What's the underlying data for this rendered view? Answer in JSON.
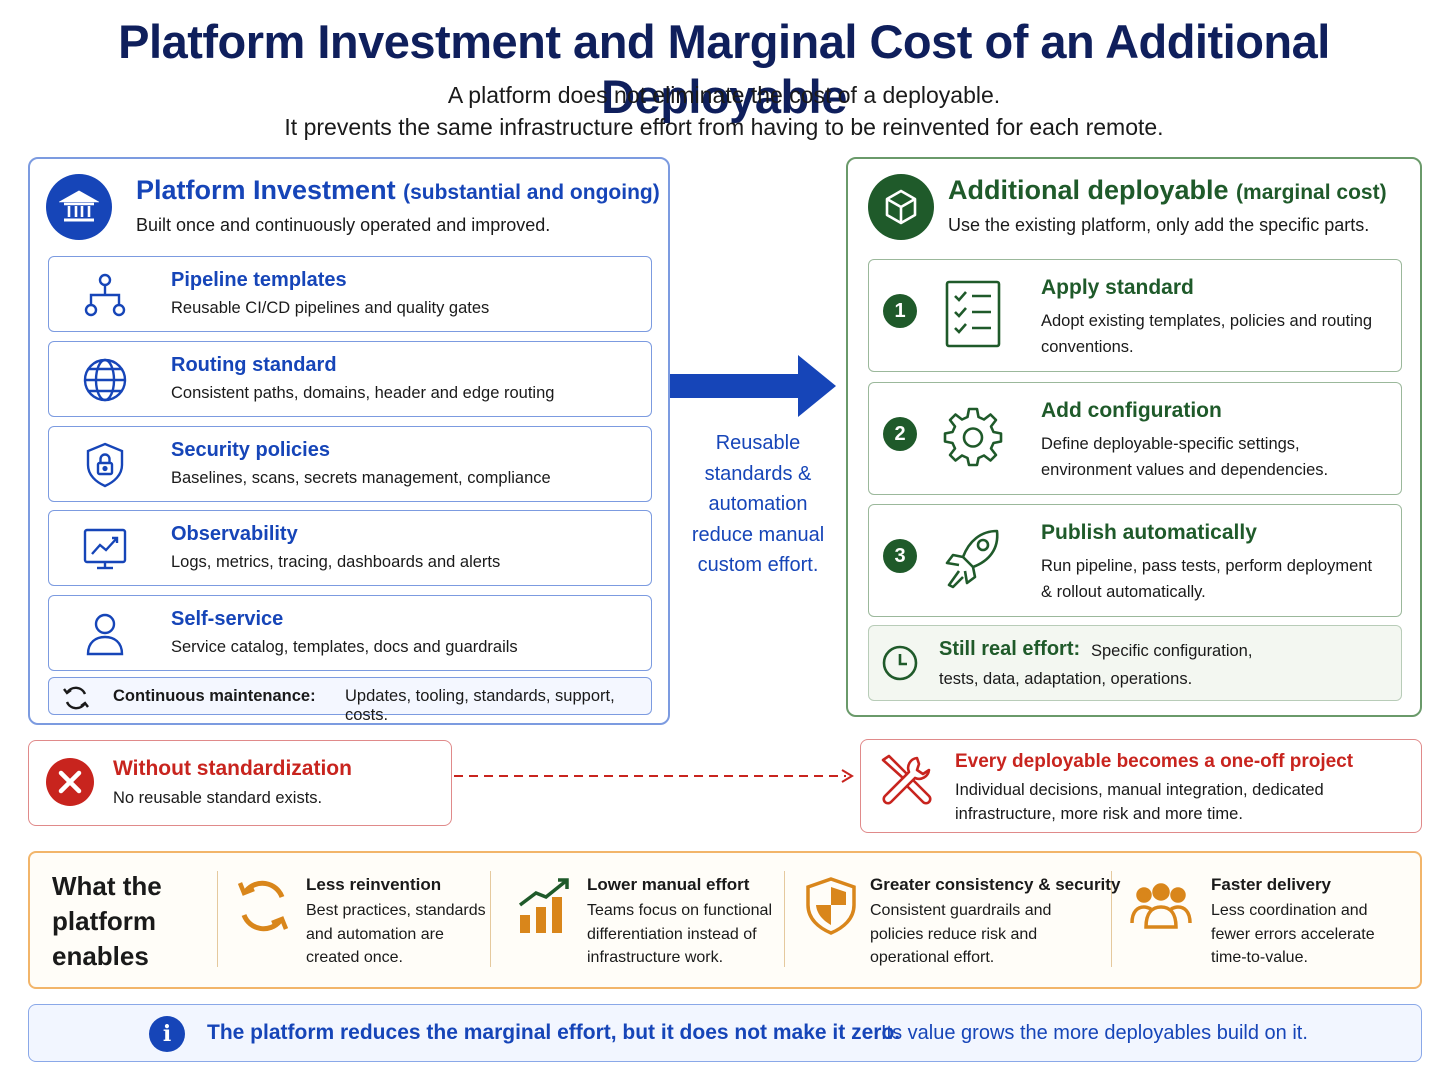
{
  "title": "Platform Investment and Marginal Cost of an Additional Deployable",
  "subtitle_line1": "A platform does not eliminate the cost of a deployable.",
  "subtitle_line2": "It prevents the same infrastructure effort from having to be reinvented for each remote.",
  "platform": {
    "heading": "Platform Investment",
    "tag": "(substantial and ongoing)",
    "description": "Built once and continuously operated and improved.",
    "items": [
      {
        "title": "Pipeline templates",
        "desc": "Reusable CI/CD pipelines and quality gates",
        "icon": "pipeline-icon"
      },
      {
        "title": "Routing standard",
        "desc": "Consistent paths, domains, header and edge routing",
        "icon": "globe-icon"
      },
      {
        "title": "Security policies",
        "desc": "Baselines, scans, secrets management, compliance",
        "icon": "shield-lock-icon"
      },
      {
        "title": "Observability",
        "desc": "Logs, metrics, tracing, dashboards and alerts",
        "icon": "monitor-chart-icon"
      },
      {
        "title": "Self-service",
        "desc": "Service catalog, templates, docs and guardrails",
        "icon": "user-icon"
      }
    ],
    "maintenance_label": "Continuous maintenance:",
    "maintenance_value": "Updates, tooling, standards, support, costs."
  },
  "middle_text": "Reusable standards & automation reduce manual custom effort.",
  "deployable": {
    "heading": "Additional deployable",
    "tag": "(marginal cost)",
    "description": "Use the existing platform, only add the specific parts.",
    "steps": [
      {
        "num": "1",
        "title": "Apply standard",
        "desc": "Adopt existing templates, policies and routing conventions.",
        "icon": "checklist-icon"
      },
      {
        "num": "2",
        "title": "Add configuration",
        "desc": "Define deployable-specific settings, environment values and dependencies.",
        "icon": "gear-icon"
      },
      {
        "num": "3",
        "title": "Publish automatically",
        "desc": "Run pipeline, pass tests, perform deployment & rollout automatically.",
        "icon": "rocket-icon"
      }
    ],
    "still_label": "Still real effort:",
    "still_value1": "Specific configuration,",
    "still_value2": "tests, data, adaptation, operations."
  },
  "without": {
    "title": "Without standardization",
    "desc": "No reusable standard exists."
  },
  "oneoff": {
    "title": "Every deployable becomes a one-off project",
    "desc": "Individual decisions, manual integration, dedicated infrastructure, more risk and more time."
  },
  "enables": {
    "heading": "What the platform enables",
    "columns": [
      {
        "title": "Less reinvention",
        "desc": "Best practices, standards and automation are created once.",
        "icon": "cycle-arrows-icon"
      },
      {
        "title": "Lower manual effort",
        "desc": "Teams focus on functional differentiation instead of infrastructure work.",
        "icon": "growth-bars-icon"
      },
      {
        "title": "Greater consistency & security",
        "desc": "Consistent guardrails and policies reduce risk and operational effort.",
        "icon": "shield-icon"
      },
      {
        "title": "Faster delivery",
        "desc": "Less coordination and fewer errors accelerate time-to-value.",
        "icon": "team-icon"
      }
    ]
  },
  "footer": {
    "bold": "The platform reduces the marginal effort, but it does not make it zero.",
    "regular": "Its value grows the more deployables build on it."
  },
  "colors": {
    "platform_blue": "#1645b8",
    "deployable_green": "#1f5a2a",
    "warning_red": "#c8241e",
    "enable_orange": "#f2b56a"
  }
}
